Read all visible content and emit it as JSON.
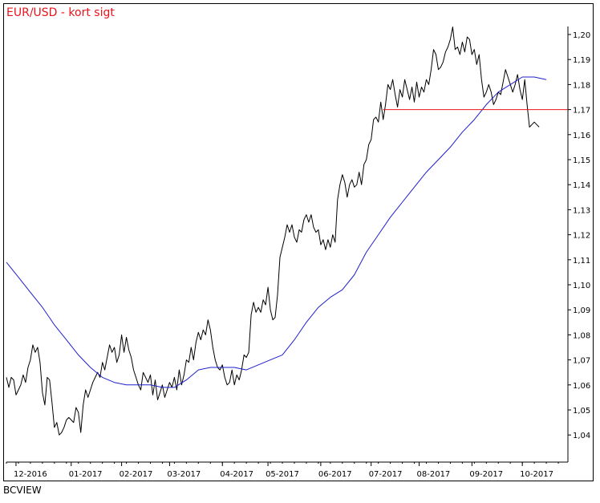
{
  "title": "EUR/USD - kort sigt",
  "footer": "BCVIEW",
  "chart_data": {
    "type": "line",
    "title": "EUR/USD - kort sigt",
    "xlabel": "",
    "ylabel": "",
    "ylim": [
      1.035,
      1.205
    ],
    "y_ticks": [
      "1,04",
      "1,05",
      "1,06",
      "1,07",
      "1,08",
      "1,09",
      "1,10",
      "1,11",
      "1,12",
      "1,13",
      "1,14",
      "1,15",
      "1,16",
      "1,17",
      "1,18",
      "1,19",
      "1,20"
    ],
    "x_ticks": [
      {
        "label": "12-2016",
        "t": 4
      },
      {
        "label": "01-2017",
        "t": 27
      },
      {
        "label": "02-2017",
        "t": 48
      },
      {
        "label": "03-2017",
        "t": 68
      },
      {
        "label": "04-2017",
        "t": 90
      },
      {
        "label": "05-2017",
        "t": 109
      },
      {
        "label": "06-2017",
        "t": 131
      },
      {
        "label": "07-2017",
        "t": 152
      },
      {
        "label": "08-2017",
        "t": 172
      },
      {
        "label": "09-2017",
        "t": 194
      },
      {
        "label": "10-2017",
        "t": 215
      }
    ],
    "x_range": [
      0,
      234
    ],
    "grid": false,
    "colors": {
      "price": "#000000",
      "average": "#1f1fcc",
      "level": "#e8141c"
    },
    "series": [
      {
        "kind": "price",
        "points": [
          [
            0,
            1.063
          ],
          [
            1,
            1.059
          ],
          [
            2,
            1.063
          ],
          [
            3,
            1.062
          ],
          [
            4,
            1.056
          ],
          [
            5,
            1.058
          ],
          [
            6,
            1.06
          ],
          [
            7,
            1.064
          ],
          [
            8,
            1.061
          ],
          [
            9,
            1.067
          ],
          [
            10,
            1.07
          ],
          [
            11,
            1.076
          ],
          [
            12,
            1.073
          ],
          [
            13,
            1.075
          ],
          [
            14,
            1.069
          ],
          [
            15,
            1.057
          ],
          [
            16,
            1.052
          ],
          [
            17,
            1.063
          ],
          [
            18,
            1.062
          ],
          [
            19,
            1.053
          ],
          [
            20,
            1.043
          ],
          [
            21,
            1.045
          ],
          [
            22,
            1.04
          ],
          [
            23,
            1.041
          ],
          [
            24,
            1.043
          ],
          [
            25,
            1.046
          ],
          [
            26,
            1.047
          ],
          [
            27,
            1.046
          ],
          [
            28,
            1.045
          ],
          [
            29,
            1.051
          ],
          [
            30,
            1.049
          ],
          [
            31,
            1.041
          ],
          [
            32,
            1.052
          ],
          [
            33,
            1.058
          ],
          [
            34,
            1.055
          ],
          [
            35,
            1.058
          ],
          [
            36,
            1.061
          ],
          [
            37,
            1.063
          ],
          [
            38,
            1.065
          ],
          [
            39,
            1.063
          ],
          [
            40,
            1.069
          ],
          [
            41,
            1.066
          ],
          [
            42,
            1.071
          ],
          [
            43,
            1.076
          ],
          [
            44,
            1.073
          ],
          [
            45,
            1.075
          ],
          [
            46,
            1.069
          ],
          [
            47,
            1.072
          ],
          [
            48,
            1.08
          ],
          [
            49,
            1.073
          ],
          [
            50,
            1.079
          ],
          [
            51,
            1.074
          ],
          [
            52,
            1.071
          ],
          [
            53,
            1.066
          ],
          [
            54,
            1.063
          ],
          [
            55,
            1.06
          ],
          [
            56,
            1.058
          ],
          [
            57,
            1.065
          ],
          [
            58,
            1.063
          ],
          [
            59,
            1.061
          ],
          [
            60,
            1.064
          ],
          [
            61,
            1.056
          ],
          [
            62,
            1.062
          ],
          [
            63,
            1.054
          ],
          [
            64,
            1.057
          ],
          [
            65,
            1.06
          ],
          [
            66,
            1.055
          ],
          [
            67,
            1.058
          ],
          [
            68,
            1.061
          ],
          [
            69,
            1.059
          ],
          [
            70,
            1.063
          ],
          [
            71,
            1.058
          ],
          [
            72,
            1.066
          ],
          [
            73,
            1.06
          ],
          [
            74,
            1.064
          ],
          [
            75,
            1.07
          ],
          [
            76,
            1.069
          ],
          [
            77,
            1.075
          ],
          [
            78,
            1.07
          ],
          [
            79,
            1.077
          ],
          [
            80,
            1.081
          ],
          [
            81,
            1.078
          ],
          [
            82,
            1.082
          ],
          [
            83,
            1.08
          ],
          [
            84,
            1.086
          ],
          [
            85,
            1.082
          ],
          [
            86,
            1.075
          ],
          [
            87,
            1.07
          ],
          [
            88,
            1.067
          ],
          [
            89,
            1.066
          ],
          [
            90,
            1.068
          ],
          [
            91,
            1.063
          ],
          [
            92,
            1.06
          ],
          [
            93,
            1.061
          ],
          [
            94,
            1.066
          ],
          [
            95,
            1.06
          ],
          [
            96,
            1.064
          ],
          [
            97,
            1.062
          ],
          [
            98,
            1.066
          ],
          [
            99,
            1.072
          ],
          [
            100,
            1.071
          ],
          [
            101,
            1.073
          ],
          [
            102,
            1.088
          ],
          [
            103,
            1.093
          ],
          [
            104,
            1.089
          ],
          [
            105,
            1.091
          ],
          [
            106,
            1.089
          ],
          [
            107,
            1.094
          ],
          [
            108,
            1.092
          ],
          [
            109,
            1.099
          ],
          [
            110,
            1.09
          ],
          [
            111,
            1.086
          ],
          [
            112,
            1.087
          ],
          [
            113,
            1.096
          ],
          [
            114,
            1.111
          ],
          [
            115,
            1.115
          ],
          [
            116,
            1.119
          ],
          [
            117,
            1.124
          ],
          [
            118,
            1.121
          ],
          [
            119,
            1.124
          ],
          [
            120,
            1.119
          ],
          [
            121,
            1.117
          ],
          [
            122,
            1.122
          ],
          [
            123,
            1.121
          ],
          [
            124,
            1.126
          ],
          [
            125,
            1.128
          ],
          [
            126,
            1.125
          ],
          [
            127,
            1.128
          ],
          [
            128,
            1.123
          ],
          [
            129,
            1.121
          ],
          [
            130,
            1.122
          ],
          [
            131,
            1.116
          ],
          [
            132,
            1.118
          ],
          [
            133,
            1.114
          ],
          [
            134,
            1.118
          ],
          [
            135,
            1.115
          ],
          [
            136,
            1.12
          ],
          [
            137,
            1.117
          ],
          [
            138,
            1.134
          ],
          [
            139,
            1.14
          ],
          [
            140,
            1.144
          ],
          [
            141,
            1.141
          ],
          [
            142,
            1.135
          ],
          [
            143,
            1.14
          ],
          [
            144,
            1.142
          ],
          [
            145,
            1.139
          ],
          [
            146,
            1.14
          ],
          [
            147,
            1.145
          ],
          [
            148,
            1.14
          ],
          [
            149,
            1.148
          ],
          [
            150,
            1.15
          ],
          [
            151,
            1.156
          ],
          [
            152,
            1.158
          ],
          [
            153,
            1.166
          ],
          [
            154,
            1.167
          ],
          [
            155,
            1.165
          ],
          [
            156,
            1.173
          ],
          [
            157,
            1.166
          ],
          [
            158,
            1.172
          ],
          [
            159,
            1.18
          ],
          [
            160,
            1.178
          ],
          [
            161,
            1.182
          ],
          [
            162,
            1.176
          ],
          [
            163,
            1.171
          ],
          [
            164,
            1.178
          ],
          [
            165,
            1.175
          ],
          [
            166,
            1.182
          ],
          [
            167,
            1.178
          ],
          [
            168,
            1.174
          ],
          [
            169,
            1.179
          ],
          [
            170,
            1.173
          ],
          [
            171,
            1.181
          ],
          [
            172,
            1.175
          ],
          [
            173,
            1.179
          ],
          [
            174,
            1.177
          ],
          [
            175,
            1.182
          ],
          [
            176,
            1.18
          ],
          [
            177,
            1.186
          ],
          [
            178,
            1.194
          ],
          [
            179,
            1.192
          ],
          [
            180,
            1.186
          ],
          [
            181,
            1.187
          ],
          [
            182,
            1.189
          ],
          [
            183,
            1.193
          ],
          [
            184,
            1.195
          ],
          [
            185,
            1.198
          ],
          [
            186,
            1.203
          ],
          [
            187,
            1.194
          ],
          [
            188,
            1.195
          ],
          [
            189,
            1.192
          ],
          [
            190,
            1.197
          ],
          [
            191,
            1.193
          ],
          [
            192,
            1.199
          ],
          [
            193,
            1.198
          ],
          [
            194,
            1.192
          ],
          [
            195,
            1.194
          ],
          [
            196,
            1.188
          ],
          [
            197,
            1.192
          ],
          [
            198,
            1.182
          ],
          [
            199,
            1.175
          ],
          [
            200,
            1.177
          ],
          [
            201,
            1.18
          ],
          [
            202,
            1.177
          ],
          [
            203,
            1.172
          ],
          [
            204,
            1.174
          ],
          [
            205,
            1.177
          ],
          [
            206,
            1.176
          ],
          [
            207,
            1.181
          ],
          [
            208,
            1.186
          ],
          [
            209,
            1.183
          ],
          [
            210,
            1.18
          ],
          [
            211,
            1.177
          ],
          [
            212,
            1.18
          ],
          [
            213,
            1.184
          ],
          [
            214,
            1.178
          ],
          [
            215,
            1.174
          ],
          [
            216,
            1.182
          ],
          [
            217,
            1.172
          ],
          [
            218,
            1.163
          ],
          [
            219,
            1.164
          ],
          [
            220,
            1.165
          ],
          [
            221,
            1.164
          ],
          [
            222,
            1.163
          ]
        ]
      },
      {
        "kind": "average",
        "points": [
          [
            0,
            1.109
          ],
          [
            5,
            1.103
          ],
          [
            10,
            1.097
          ],
          [
            15,
            1.091
          ],
          [
            20,
            1.084
          ],
          [
            25,
            1.078
          ],
          [
            30,
            1.072
          ],
          [
            35,
            1.067
          ],
          [
            40,
            1.063
          ],
          [
            45,
            1.061
          ],
          [
            50,
            1.06
          ],
          [
            55,
            1.06
          ],
          [
            60,
            1.06
          ],
          [
            65,
            1.059
          ],
          [
            70,
            1.059
          ],
          [
            75,
            1.062
          ],
          [
            80,
            1.066
          ],
          [
            85,
            1.067
          ],
          [
            90,
            1.067
          ],
          [
            95,
            1.067
          ],
          [
            100,
            1.066
          ],
          [
            105,
            1.068
          ],
          [
            110,
            1.07
          ],
          [
            115,
            1.072
          ],
          [
            120,
            1.078
          ],
          [
            125,
            1.085
          ],
          [
            130,
            1.091
          ],
          [
            135,
            1.095
          ],
          [
            140,
            1.098
          ],
          [
            145,
            1.104
          ],
          [
            150,
            1.113
          ],
          [
            155,
            1.12
          ],
          [
            160,
            1.127
          ],
          [
            165,
            1.133
          ],
          [
            170,
            1.139
          ],
          [
            175,
            1.145
          ],
          [
            180,
            1.15
          ],
          [
            185,
            1.155
          ],
          [
            190,
            1.161
          ],
          [
            195,
            1.166
          ],
          [
            200,
            1.172
          ],
          [
            205,
            1.177
          ],
          [
            210,
            1.18
          ],
          [
            215,
            1.183
          ],
          [
            220,
            1.183
          ],
          [
            225,
            1.182
          ]
        ]
      },
      {
        "kind": "level",
        "value": 1.17,
        "from": 157,
        "to": 234
      }
    ]
  }
}
